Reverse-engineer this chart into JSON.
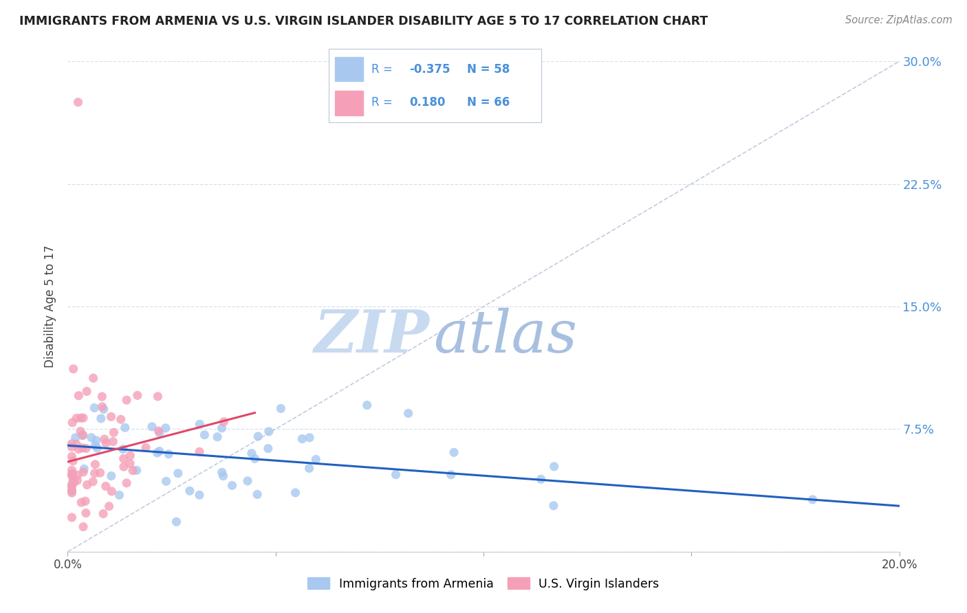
{
  "title": "IMMIGRANTS FROM ARMENIA VS U.S. VIRGIN ISLANDER DISABILITY AGE 5 TO 17 CORRELATION CHART",
  "source": "Source: ZipAtlas.com",
  "ylabel": "Disability Age 5 to 17",
  "x_min": 0.0,
  "x_max": 0.2,
  "y_min": 0.0,
  "y_max": 0.3,
  "legend_r_blue": "-0.375",
  "legend_n_blue": "58",
  "legend_r_pink": "0.180",
  "legend_n_pink": "66",
  "blue_color": "#a8c8f0",
  "pink_color": "#f5a0b8",
  "trend_blue_color": "#2060c0",
  "trend_pink_color": "#e04868",
  "diagonal_color": "#c0cce0",
  "watermark_zip_color": "#c8daf0",
  "watermark_atlas_color": "#a8c0e0",
  "grid_color": "#d8e0ec",
  "title_color": "#222222",
  "source_color": "#888888",
  "axis_label_color": "#444444",
  "right_tick_color": "#4a90d9",
  "legend_border_color": "#b8c8d8",
  "blue_trend_start_y": 0.065,
  "blue_trend_end_y": 0.028,
  "pink_trend_start_y": 0.055,
  "pink_trend_end_y": 0.085,
  "pink_trend_end_x": 0.045
}
